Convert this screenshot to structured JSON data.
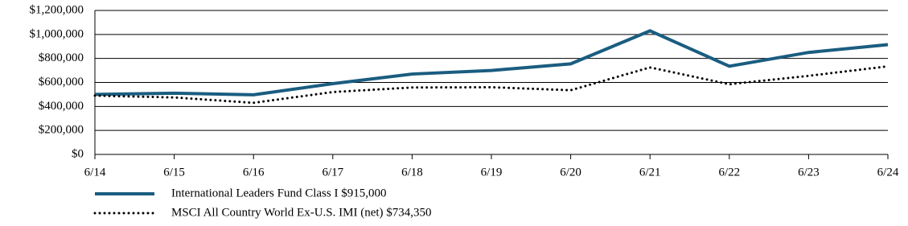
{
  "chart_data": {
    "type": "line",
    "categories": [
      "6/14",
      "6/15",
      "6/16",
      "6/17",
      "6/18",
      "6/19",
      "6/20",
      "6/21",
      "6/22",
      "6/23",
      "6/24"
    ],
    "series": [
      {
        "name": "International Leaders Fund Class I $915,000",
        "color": "#1a5d80",
        "style": "solid",
        "values": [
          500000,
          510000,
          497000,
          590000,
          670000,
          700000,
          755000,
          1030000,
          735000,
          850000,
          915000
        ]
      },
      {
        "name": "MSCI All Country World Ex-U.S. IMI (net) $734,350",
        "color": "#000000",
        "style": "dotted",
        "values": [
          490000,
          475000,
          430000,
          520000,
          558000,
          560000,
          535000,
          725000,
          585000,
          655000,
          734350
        ]
      }
    ],
    "ylim": [
      0,
      1200000
    ],
    "yticks": [
      {
        "value": 0,
        "label": "$0"
      },
      {
        "value": 200000,
        "label": "$200,000"
      },
      {
        "value": 400000,
        "label": "$400,000"
      },
      {
        "value": 600000,
        "label": "$600,000"
      },
      {
        "value": 800000,
        "label": "$800,000"
      },
      {
        "value": 1000000,
        "label": "$1,000,000"
      },
      {
        "value": 1200000,
        "label": "$1,200,000"
      }
    ],
    "grid": true
  }
}
